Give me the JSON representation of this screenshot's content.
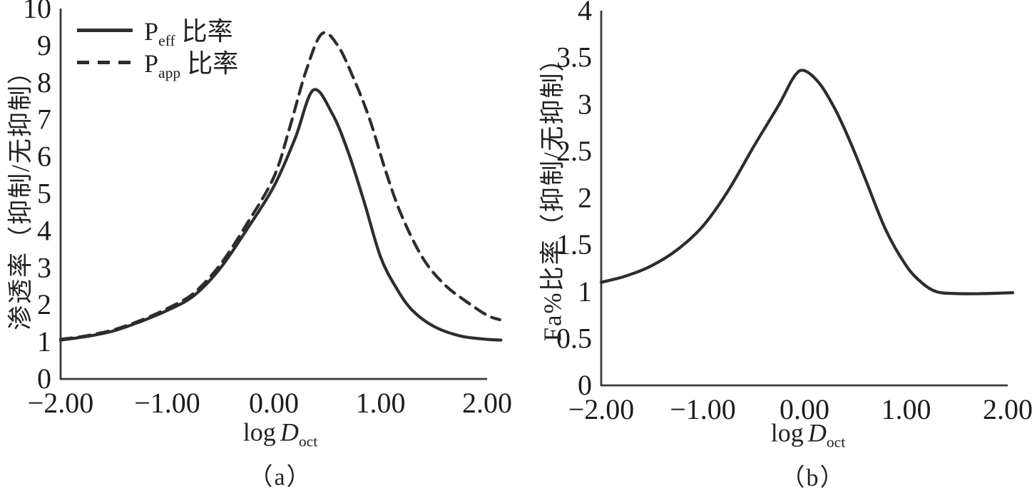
{
  "figure": {
    "background": "#ffffff",
    "ink_color": "#2d2d2d",
    "axis_color": "#3a3a3a",
    "text_color": "#222222"
  },
  "chart_data": [
    {
      "panel": "a",
      "type": "line",
      "caption": "（a）",
      "ylabel": "渗透率（抑制/无抑制）",
      "xlabel": {
        "func": "log",
        "variable": "D",
        "subscript": "oct"
      },
      "xlim": [
        -2,
        2
      ],
      "ylim": [
        0,
        10
      ],
      "grid": false,
      "xticks": {
        "values": [
          -2,
          -1,
          0,
          1,
          2
        ],
        "labels": [
          "−2.00",
          "−1.00",
          "0.00",
          "1.00",
          "2.00"
        ]
      },
      "yticks": {
        "values": [
          0,
          1,
          2,
          3,
          4,
          5,
          6,
          7,
          8,
          9,
          10
        ],
        "labels": [
          "0",
          "1",
          "2",
          "3",
          "4",
          "5",
          "6",
          "7",
          "8",
          "9",
          "10"
        ]
      },
      "legend": {
        "position": "top-left",
        "items": [
          {
            "marker": "solid-line",
            "label_base": "P",
            "label_sub": "eff",
            "label_suffix": " 比率"
          },
          {
            "marker": "dashed-line",
            "label_base": "P",
            "label_sub": "app",
            "label_suffix": " 比率"
          }
        ]
      },
      "series": [
        {
          "key": "peff_ratio",
          "name": "Peff 比率",
          "style": "solid",
          "points": [
            [
              -2.0,
              1.05
            ],
            [
              -1.75,
              1.15
            ],
            [
              -1.5,
              1.3
            ],
            [
              -1.25,
              1.55
            ],
            [
              -1.0,
              1.85
            ],
            [
              -0.75,
              2.25
            ],
            [
              -0.5,
              3.0
            ],
            [
              -0.25,
              4.05
            ],
            [
              0.0,
              5.2
            ],
            [
              0.2,
              6.5
            ],
            [
              0.37,
              7.8
            ],
            [
              0.55,
              7.15
            ],
            [
              0.7,
              6.1
            ],
            [
              0.85,
              4.75
            ],
            [
              1.0,
              3.3
            ],
            [
              1.15,
              2.45
            ],
            [
              1.3,
              1.85
            ],
            [
              1.5,
              1.42
            ],
            [
              1.75,
              1.16
            ],
            [
              2.0,
              1.07
            ],
            [
              2.13,
              1.05
            ]
          ]
        },
        {
          "key": "papp_ratio",
          "name": "Papp 比率",
          "style": "dashed",
          "points": [
            [
              -2.0,
              1.07
            ],
            [
              -1.75,
              1.17
            ],
            [
              -1.5,
              1.33
            ],
            [
              -1.25,
              1.58
            ],
            [
              -1.0,
              1.9
            ],
            [
              -0.75,
              2.32
            ],
            [
              -0.5,
              3.1
            ],
            [
              -0.25,
              4.2
            ],
            [
              0.0,
              5.45
            ],
            [
              0.15,
              6.8
            ],
            [
              0.3,
              8.3
            ],
            [
              0.45,
              9.32
            ],
            [
              0.6,
              9.0
            ],
            [
              0.75,
              8.1
            ],
            [
              0.9,
              7.0
            ],
            [
              1.05,
              5.6
            ],
            [
              1.2,
              4.4
            ],
            [
              1.4,
              3.25
            ],
            [
              1.6,
              2.55
            ],
            [
              1.8,
              2.1
            ],
            [
              2.0,
              1.72
            ],
            [
              2.12,
              1.6
            ]
          ]
        }
      ]
    },
    {
      "panel": "b",
      "type": "line",
      "caption": "（b）",
      "ylabel": "Fa%比率（抑制/无抑制）",
      "xlabel": {
        "func": "log",
        "variable": "D",
        "subscript": "oct"
      },
      "xlim": [
        -2,
        2
      ],
      "ylim": [
        0,
        4
      ],
      "grid": false,
      "xticks": {
        "values": [
          -2,
          -1,
          0,
          1,
          2
        ],
        "labels": [
          "−2.00",
          "−1.00",
          "0.00",
          "1.00",
          "2.00"
        ]
      },
      "yticks": {
        "values": [
          0,
          0.5,
          1,
          1.5,
          2,
          2.5,
          3,
          3.5,
          4
        ],
        "labels": [
          "0",
          "0.5",
          "1",
          "1.5",
          "2",
          "2.5",
          "3",
          "3.5",
          "4"
        ]
      },
      "legend": null,
      "series": [
        {
          "key": "fa_ratio",
          "name": "Fa%比率",
          "style": "solid",
          "points": [
            [
              -2.0,
              1.1
            ],
            [
              -1.75,
              1.17
            ],
            [
              -1.5,
              1.28
            ],
            [
              -1.25,
              1.45
            ],
            [
              -1.0,
              1.7
            ],
            [
              -0.75,
              2.08
            ],
            [
              -0.5,
              2.55
            ],
            [
              -0.25,
              3.0
            ],
            [
              -0.1,
              3.3
            ],
            [
              0.0,
              3.36
            ],
            [
              0.15,
              3.22
            ],
            [
              0.3,
              2.95
            ],
            [
              0.45,
              2.6
            ],
            [
              0.6,
              2.2
            ],
            [
              0.8,
              1.66
            ],
            [
              1.0,
              1.28
            ],
            [
              1.15,
              1.1
            ],
            [
              1.3,
              1.0
            ],
            [
              1.5,
              0.98
            ],
            [
              1.75,
              0.98
            ],
            [
              2.05,
              0.99
            ]
          ]
        }
      ]
    }
  ]
}
